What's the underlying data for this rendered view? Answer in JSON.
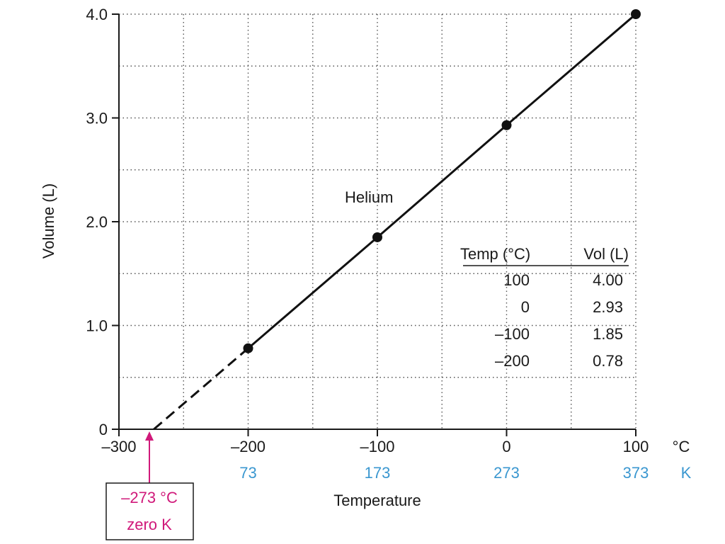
{
  "chart_data": {
    "type": "line",
    "series": [
      {
        "name": "Helium",
        "points": [
          [
            -200,
            0.78
          ],
          [
            -100,
            1.85
          ],
          [
            0,
            2.93
          ],
          [
            100,
            4.0
          ]
        ]
      }
    ],
    "extrapolation": {
      "from": [
        -273,
        0
      ],
      "to": [
        -200,
        0.78
      ],
      "style": "dashed"
    },
    "xlabel": "Temperature",
    "ylabel": "Volume (L)",
    "xlim": [
      -300,
      100
    ],
    "ylim": [
      0,
      4.0
    ],
    "x_ticks": [
      -300,
      -200,
      -100,
      0,
      100
    ],
    "x_tick_labels": [
      "–300",
      "–200",
      "–100",
      "0",
      "100"
    ],
    "x_unit": "°C",
    "kelvin_tick_values": [
      -200,
      -100,
      0,
      100
    ],
    "kelvin_tick_labels": [
      "73",
      "173",
      "273",
      "373"
    ],
    "kelvin_unit": "K",
    "y_ticks": [
      0,
      1.0,
      2.0,
      3.0,
      4.0
    ],
    "y_tick_labels": [
      "0",
      "1.0",
      "2.0",
      "3.0",
      "4.0"
    ],
    "grid": true,
    "grid_style": "dotted",
    "x_grid_step": 50,
    "y_grid_step": 0.5,
    "series_label": "Helium",
    "table": {
      "headers": [
        "Temp (°C)",
        "Vol (L)"
      ],
      "rows": [
        [
          "100",
          "4.00"
        ],
        [
          "0",
          "2.93"
        ],
        [
          "–100",
          "1.85"
        ],
        [
          "–200",
          "0.78"
        ]
      ]
    },
    "callout": {
      "x": -273,
      "lines": [
        "–273 °C",
        "zero K"
      ]
    },
    "colors": {
      "line": "#111111",
      "kelvin": "#3a97d0",
      "callout": "#d0197a",
      "grid": "#555555"
    }
  }
}
